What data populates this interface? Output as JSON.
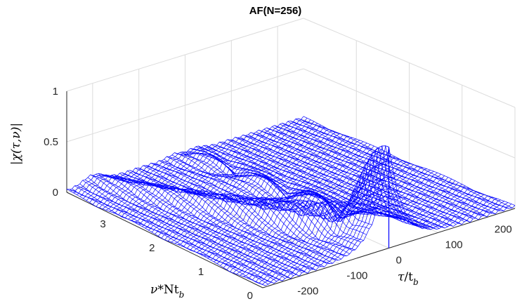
{
  "chart_data": {
    "type": "surface",
    "title": "AF(N=256)",
    "zlabel": "|χ(τ,ν)|",
    "xlabel_main": "τ",
    "xlabel_sub": "b",
    "xlabel_mid": "/t",
    "ylabel_main": "ν",
    "ylabel_mid": "*Nt",
    "ylabel_sub": "b",
    "z_ticks": [
      "0",
      "0.5",
      "1"
    ],
    "x_ticks": [
      "-200",
      "-100",
      "0",
      "100",
      "200"
    ],
    "y_ticks": [
      "0",
      "1",
      "2",
      "3"
    ],
    "xlim": [
      -256,
      256
    ],
    "ylim": [
      0,
      4
    ],
    "zlim": [
      0,
      1
    ],
    "grid": true,
    "mesh_color": "#0000ff",
    "peak": {
      "tau": 0,
      "nu": 0,
      "value": 1.0
    },
    "ridge_description_values": [
      {
        "tau": 0,
        "nu": 0,
        "value": 1.0
      },
      {
        "tau": -50,
        "nu": 0.8,
        "value": 0.45
      },
      {
        "tau": -120,
        "nu": 2.0,
        "value": 0.3
      },
      {
        "tau": -180,
        "nu": 3.2,
        "value": 0.15
      }
    ]
  }
}
